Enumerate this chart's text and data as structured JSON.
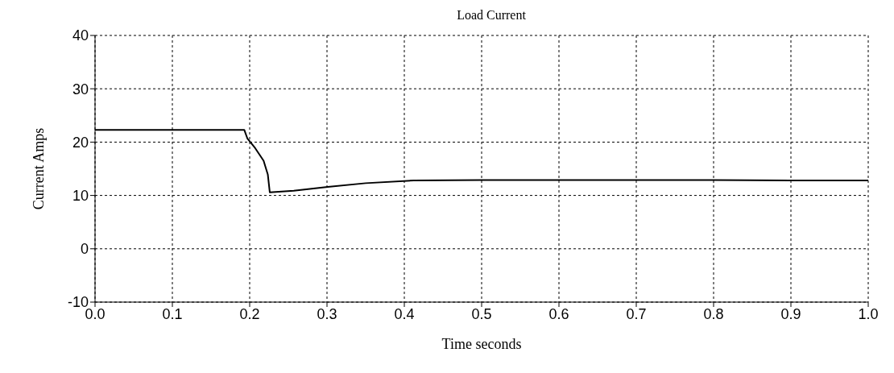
{
  "chart_data": {
    "type": "line",
    "title": "Load Current",
    "xlabel": "Time seconds",
    "ylabel": "Current Amps",
    "xlim": [
      0,
      1
    ],
    "xticks": [
      {
        "value": 0,
        "label": "0.0"
      },
      {
        "value": 0.1,
        "label": "0.1"
      },
      {
        "value": 0.2,
        "label": "0.2"
      },
      {
        "value": 0.3,
        "label": "0.3"
      },
      {
        "value": 0.4,
        "label": "0.4"
      },
      {
        "value": 0.5,
        "label": "0.5"
      },
      {
        "value": 0.6,
        "label": "0.6"
      },
      {
        "value": 0.7,
        "label": "0.7"
      },
      {
        "value": 0.8,
        "label": "0.8"
      },
      {
        "value": 0.9,
        "label": "0.9"
      },
      {
        "value": 1,
        "label": "1.0"
      }
    ],
    "ylim": [
      -10,
      40
    ],
    "yticks": [
      -10,
      0,
      10,
      20,
      30,
      40
    ],
    "grid": true,
    "line_style": "solid",
    "marker": "none",
    "series": [
      {
        "color": "#000000",
        "x": [
          0,
          0.1,
          0.193,
          0.197,
          0.207,
          0.218,
          0.2235,
          0.226,
          0.257,
          0.301,
          0.35,
          0.412,
          0.5,
          0.6,
          0.7,
          0.8,
          0.9,
          1.0
        ],
        "values": [
          22.3,
          22.3,
          22.3,
          20.7,
          18.9,
          16.5,
          13.9,
          10.6,
          10.9,
          11.6,
          12.3,
          12.8,
          12.9,
          12.9,
          12.9,
          12.9,
          12.8,
          12.8
        ]
      }
    ]
  }
}
